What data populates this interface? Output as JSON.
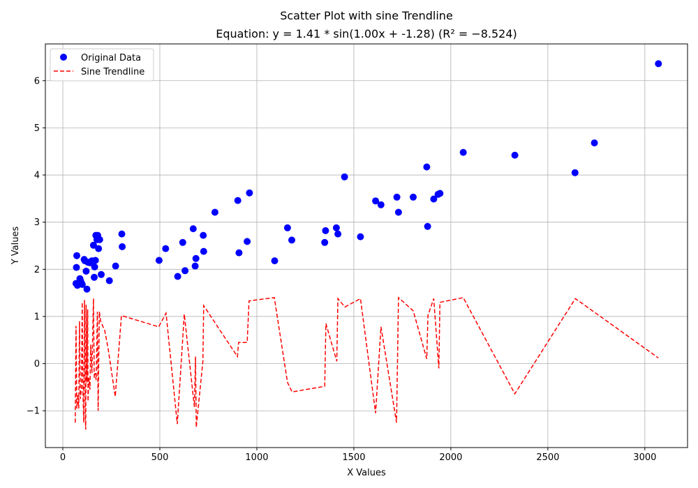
{
  "chart_data": {
    "type": "scatter",
    "title": "Scatter Plot with sine Trendline",
    "subtitle": "Equation: y = 1.41 * sin(1.00x + -1.28) (R² = −8.524)",
    "xlabel": "X Values",
    "ylabel": "Y Values",
    "xlim": [
      -90,
      3220
    ],
    "ylim": [
      -1.78,
      6.78
    ],
    "xticks": [
      0,
      500,
      1000,
      1500,
      2000,
      2500,
      3000
    ],
    "yticks": [
      -1,
      0,
      1,
      2,
      3,
      4,
      5,
      6
    ],
    "grid": true,
    "legend_position": "top-left",
    "colors": {
      "scatter": "#0000ff",
      "trend": "#ff0000",
      "grid": "#b0b0b0"
    },
    "series": [
      {
        "name": "Original Data",
        "kind": "scatter",
        "points": [
          [
            68,
            1.7
          ],
          [
            70,
            2.04
          ],
          [
            72,
            2.29
          ],
          [
            75,
            1.66
          ],
          [
            88,
            1.8
          ],
          [
            92,
            1.75
          ],
          [
            96,
            1.71
          ],
          [
            100,
            1.68
          ],
          [
            110,
            2.21
          ],
          [
            114,
            2.18
          ],
          [
            120,
            1.96
          ],
          [
            124,
            1.58
          ],
          [
            130,
            2.15
          ],
          [
            140,
            2.14
          ],
          [
            150,
            2.18
          ],
          [
            158,
            2.51
          ],
          [
            162,
            1.83
          ],
          [
            164,
            2.05
          ],
          [
            168,
            2.19
          ],
          [
            170,
            2.72
          ],
          [
            176,
            2.63
          ],
          [
            180,
            2.72
          ],
          [
            184,
            2.44
          ],
          [
            190,
            2.63
          ],
          [
            198,
            1.89
          ],
          [
            240,
            1.76
          ],
          [
            272,
            2.07
          ],
          [
            304,
            2.75
          ],
          [
            306,
            2.48
          ],
          [
            496,
            2.19
          ],
          [
            530,
            2.44
          ],
          [
            592,
            1.85
          ],
          [
            618,
            2.57
          ],
          [
            630,
            1.97
          ],
          [
            672,
            2.86
          ],
          [
            682,
            2.07
          ],
          [
            686,
            2.23
          ],
          [
            724,
            2.72
          ],
          [
            726,
            2.38
          ],
          [
            784,
            3.21
          ],
          [
            902,
            3.46
          ],
          [
            908,
            2.35
          ],
          [
            950,
            2.59
          ],
          [
            962,
            3.62
          ],
          [
            1092,
            2.18
          ],
          [
            1158,
            2.88
          ],
          [
            1180,
            2.62
          ],
          [
            1350,
            2.57
          ],
          [
            1354,
            2.82
          ],
          [
            1410,
            2.88
          ],
          [
            1418,
            2.75
          ],
          [
            1452,
            3.96
          ],
          [
            1534,
            2.69
          ],
          [
            1612,
            3.45
          ],
          [
            1640,
            3.37
          ],
          [
            1722,
            3.53
          ],
          [
            1730,
            3.21
          ],
          [
            1806,
            3.53
          ],
          [
            1876,
            4.17
          ],
          [
            1880,
            2.91
          ],
          [
            1912,
            3.49
          ],
          [
            1934,
            3.59
          ],
          [
            1944,
            3.61
          ],
          [
            2064,
            4.48
          ],
          [
            2330,
            4.42
          ],
          [
            2640,
            4.05
          ],
          [
            2740,
            4.68
          ],
          [
            3070,
            6.36
          ]
        ]
      },
      {
        "name": "Sine Trendline",
        "kind": "line",
        "points": [
          [
            64,
            -1.25
          ],
          [
            68,
            0.8
          ],
          [
            72,
            -0.95
          ],
          [
            78,
            -0.65
          ],
          [
            82,
            -0.95
          ],
          [
            86,
            0.9
          ],
          [
            90,
            -0.75
          ],
          [
            96,
            -0.55
          ],
          [
            100,
            1.3
          ],
          [
            104,
            -0.65
          ],
          [
            108,
            -1.25
          ],
          [
            112,
            1.35
          ],
          [
            116,
            -1.2
          ],
          [
            118,
            -1.4
          ],
          [
            120,
            1.25
          ],
          [
            124,
            -0.4
          ],
          [
            128,
            1.15
          ],
          [
            130,
            -0.8
          ],
          [
            134,
            -0.3
          ],
          [
            140,
            -0.55
          ],
          [
            144,
            0.4
          ],
          [
            150,
            -0.2
          ],
          [
            158,
            1.38
          ],
          [
            162,
            -0.3
          ],
          [
            166,
            -0.2
          ],
          [
            172,
            -0.35
          ],
          [
            178,
            1.1
          ],
          [
            182,
            -1.0
          ],
          [
            188,
            1.1
          ],
          [
            195,
            0.9
          ],
          [
            216,
            0.7
          ],
          [
            234,
            0.3
          ],
          [
            270,
            -0.7
          ],
          [
            302,
            1.02
          ],
          [
            494,
            0.78
          ],
          [
            532,
            1.07
          ],
          [
            590,
            -1.28
          ],
          [
            626,
            1.05
          ],
          [
            678,
            -0.92
          ],
          [
            684,
            0.15
          ],
          [
            688,
            -1.35
          ],
          [
            722,
            0.05
          ],
          [
            726,
            1.23
          ],
          [
            900,
            0.15
          ],
          [
            906,
            0.45
          ],
          [
            950,
            0.45
          ],
          [
            960,
            1.33
          ],
          [
            1090,
            1.4
          ],
          [
            1158,
            -0.4
          ],
          [
            1182,
            -0.6
          ],
          [
            1350,
            -0.48
          ],
          [
            1356,
            0.85
          ],
          [
            1412,
            0.05
          ],
          [
            1418,
            1.38
          ],
          [
            1454,
            1.2
          ],
          [
            1534,
            1.38
          ],
          [
            1612,
            -1.05
          ],
          [
            1640,
            0.78
          ],
          [
            1720,
            -1.25
          ],
          [
            1730,
            1.4
          ],
          [
            1806,
            1.12
          ],
          [
            1876,
            0.1
          ],
          [
            1882,
            1.02
          ],
          [
            1912,
            1.38
          ],
          [
            1938,
            -0.1
          ],
          [
            1944,
            1.3
          ],
          [
            2064,
            1.4
          ],
          [
            2330,
            -0.64
          ],
          [
            2642,
            1.38
          ],
          [
            3070,
            0.12
          ]
        ]
      }
    ]
  }
}
